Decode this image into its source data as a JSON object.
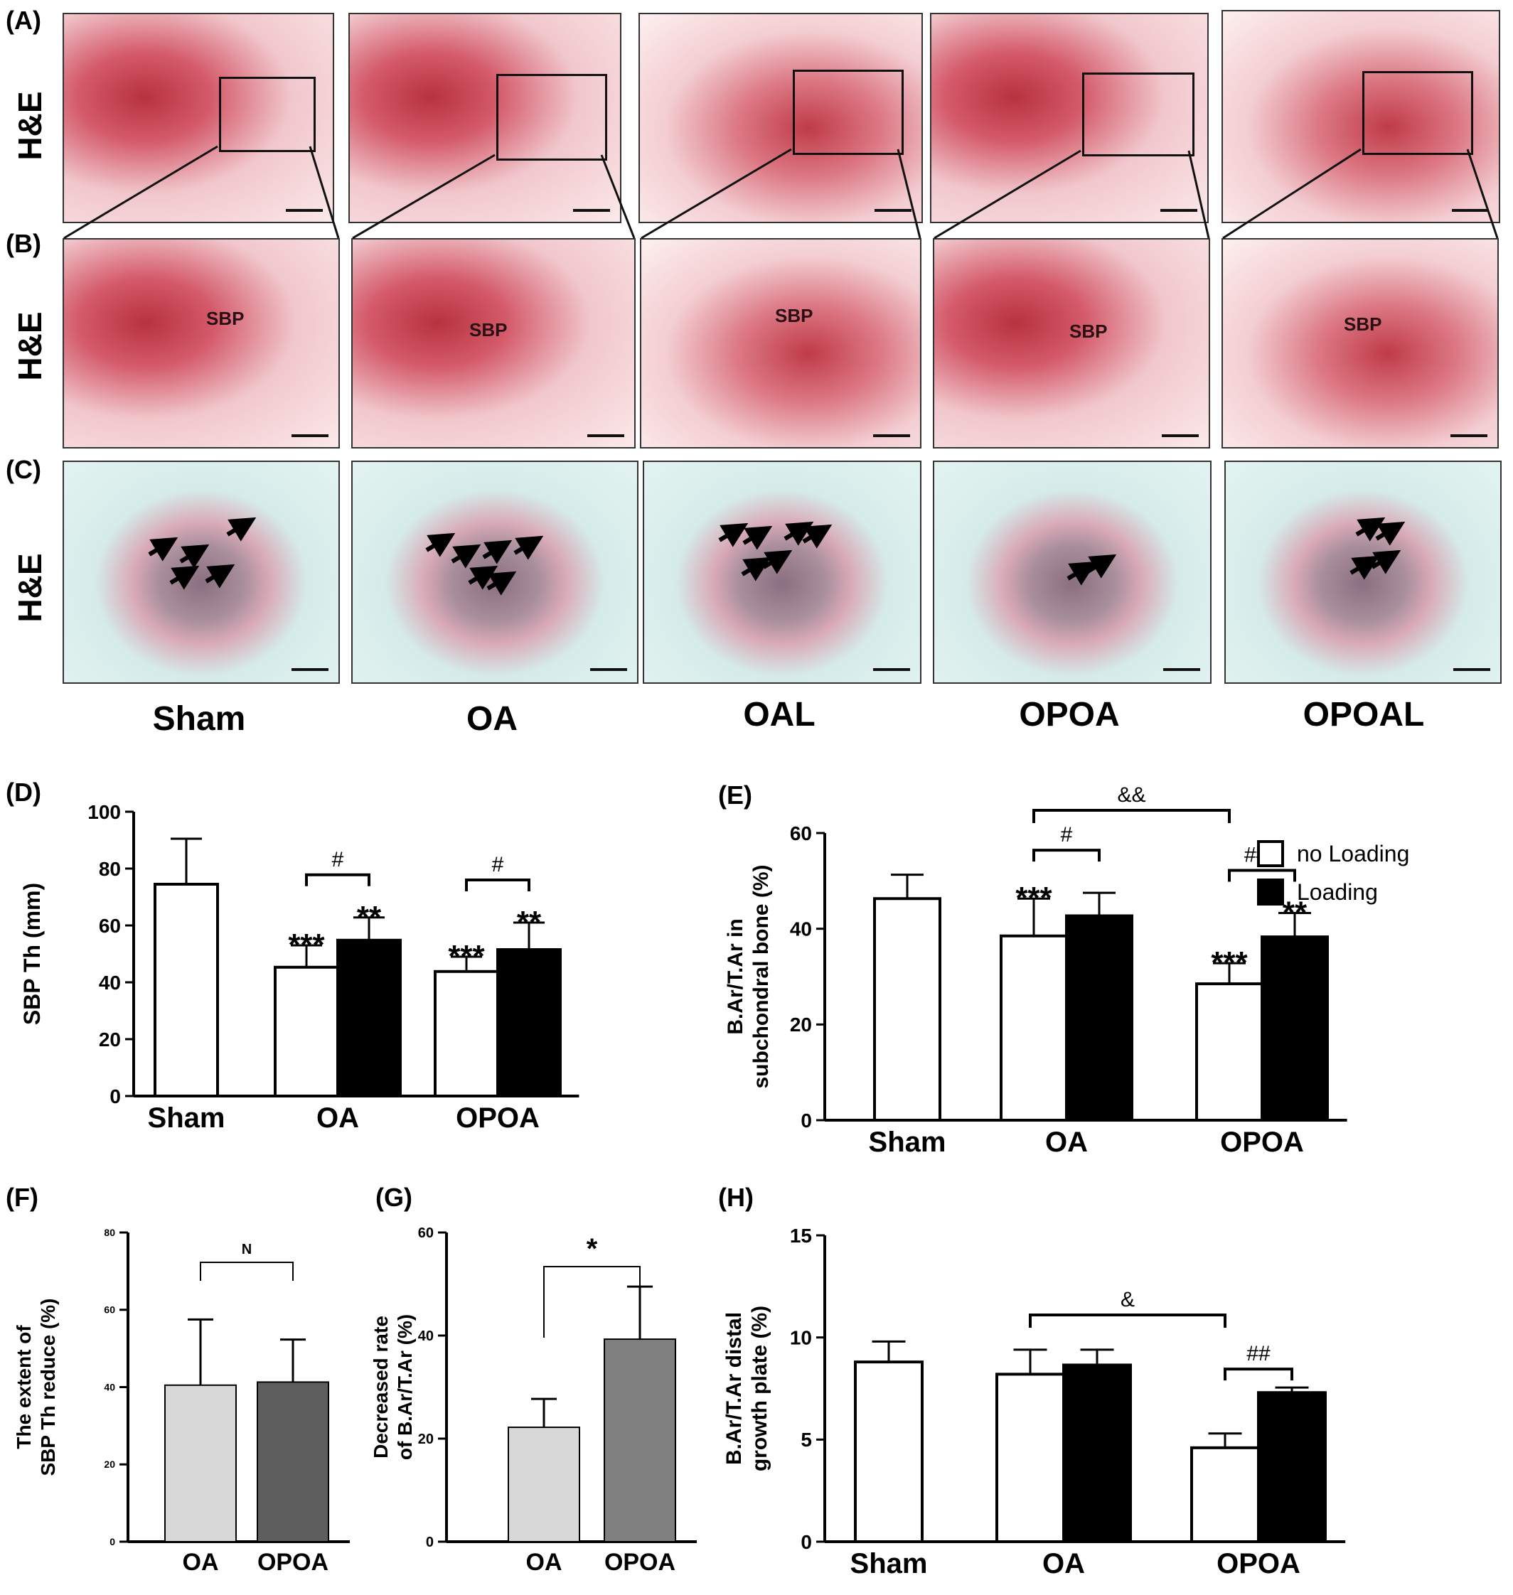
{
  "panel_labels": {
    "A": "(A)",
    "B": "(B)",
    "C": "(C)",
    "D": "(D)",
    "E": "(E)",
    "F": "(F)",
    "G": "(G)",
    "H": "(H)"
  },
  "row_label": "H&E",
  "micrograph_groups": [
    "Sham",
    "OA",
    "OAL",
    "OPOA",
    "OPOAL"
  ],
  "sbp_label": "SBP",
  "chart_data": [
    {
      "id": "D",
      "type": "bar",
      "categories": [
        "Sham",
        "OA",
        "OPOA"
      ],
      "series": [
        {
          "name": "no Loading",
          "values": [
            74.5,
            45.3,
            43.8
          ],
          "errors": [
            16,
            7.7,
            5.2
          ],
          "color": "#ffffff"
        },
        {
          "name": "Loading",
          "values": [
            null,
            54.8,
            51.5
          ],
          "errors": [
            null,
            8.0,
            9.5
          ],
          "color": "#000000"
        }
      ],
      "ylabel": "SBP Th (mm)",
      "ylim": [
        0,
        100
      ],
      "yticks": [
        0,
        20,
        40,
        60,
        80,
        100
      ],
      "annotations": [
        {
          "text": "***",
          "category": 1,
          "series": 0
        },
        {
          "text": "**",
          "category": 1,
          "series": 1
        },
        {
          "text": "***",
          "category": 2,
          "series": 0
        },
        {
          "text": "**",
          "category": 2,
          "series": 1
        },
        {
          "text": "#",
          "category": 1,
          "bracket": "within"
        },
        {
          "text": "#",
          "category": 2,
          "bracket": "within"
        }
      ]
    },
    {
      "id": "E",
      "type": "bar",
      "categories": [
        "Sham",
        "OA",
        "OPOA"
      ],
      "series": [
        {
          "name": "no Loading",
          "values": [
            46.3,
            38.5,
            28.5
          ],
          "errors": [
            5,
            7.8,
            4.3
          ],
          "color": "#ffffff"
        },
        {
          "name": "Loading",
          "values": [
            null,
            42.7,
            38.3
          ],
          "errors": [
            null,
            4.8,
            5.0
          ],
          "color": "#000000"
        }
      ],
      "ylabel": "B.Ar/T.Ar in subchondral bone  (%)",
      "ylim": [
        0,
        60
      ],
      "yticks": [
        0,
        20,
        40,
        60
      ],
      "legend": [
        "no Loading",
        "Loading"
      ],
      "annotations": [
        {
          "text": "***",
          "category": 1,
          "series": 0
        },
        {
          "text": "***",
          "category": 2,
          "series": 0
        },
        {
          "text": "**",
          "category": 2,
          "series": 1
        },
        {
          "text": "#",
          "category": 1,
          "bracket": "within"
        },
        {
          "text": "###",
          "category": 2,
          "bracket": "within"
        },
        {
          "text": "&&",
          "bracket": "between"
        }
      ]
    },
    {
      "id": "F",
      "type": "bar",
      "categories": [
        "OA",
        "OPOA"
      ],
      "values": [
        40.5,
        41.3
      ],
      "errors": [
        17,
        11
      ],
      "colors": [
        "#d8d8d8",
        "#5e5e5e"
      ],
      "ylabel": "The extent of SBP Th reduce (%)",
      "ylim": [
        0,
        80
      ],
      "yticks": [
        0,
        20,
        40,
        60,
        80
      ],
      "annotations": [
        {
          "text": "N",
          "bracket": "between"
        }
      ]
    },
    {
      "id": "G",
      "type": "bar",
      "categories": [
        "OA",
        "OPOA"
      ],
      "values": [
        22.2,
        39.3
      ],
      "errors": [
        5.5,
        10.2
      ],
      "colors": [
        "#d8d8d8",
        "#808080"
      ],
      "ylabel": "Decreased rate of B.Ar/T.Ar (%)",
      "ylim": [
        0,
        60
      ],
      "yticks": [
        0,
        20,
        40,
        60
      ],
      "annotations": [
        {
          "text": "*",
          "bracket": "between"
        }
      ]
    },
    {
      "id": "H",
      "type": "bar",
      "categories": [
        "Sham",
        "OA",
        "OPOA"
      ],
      "series": [
        {
          "name": "no Loading",
          "values": [
            8.8,
            8.2,
            4.6
          ],
          "errors": [
            1.0,
            1.2,
            0.7
          ],
          "color": "#ffffff"
        },
        {
          "name": "Loading",
          "values": [
            null,
            8.65,
            7.3
          ],
          "errors": [
            null,
            0.75,
            0.25
          ],
          "color": "#000000"
        }
      ],
      "ylabel": "B.Ar/T.Ar distal growth plate (%)",
      "ylim": [
        0,
        15
      ],
      "yticks": [
        0,
        5,
        10,
        15
      ],
      "annotations": [
        {
          "text": "##",
          "category": 2,
          "bracket": "within"
        },
        {
          "text": "&",
          "bracket": "between"
        }
      ]
    }
  ]
}
